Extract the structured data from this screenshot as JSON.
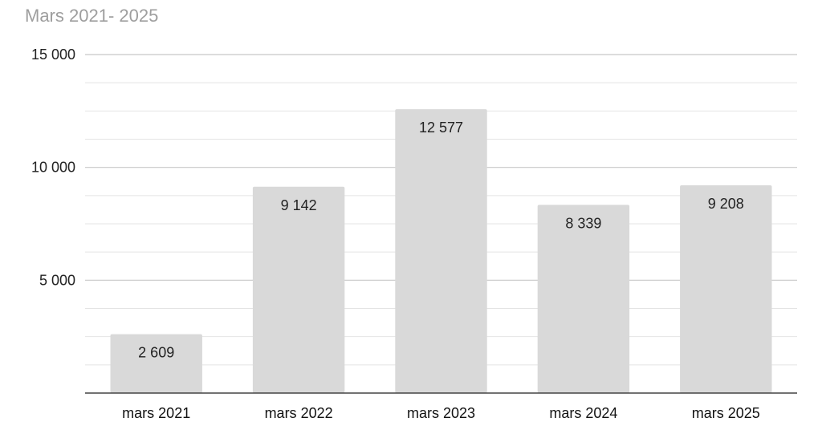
{
  "chart_data": {
    "type": "bar",
    "title": "Mars 2021- 2025",
    "categories": [
      "mars 2021",
      "mars 2022",
      "mars 2023",
      "mars 2024",
      "mars 2025"
    ],
    "values": [
      2609,
      9142,
      12577,
      8339,
      9208
    ],
    "data_labels": [
      "2 609",
      "9 142",
      "12 577",
      "8 339",
      "9 208"
    ],
    "y_ticks": [
      {
        "value": 5000,
        "label": "5 000"
      },
      {
        "value": 10000,
        "label": "10 000"
      },
      {
        "value": 15000,
        "label": "15 000"
      }
    ],
    "minor_gridline_step": 1250,
    "ylim": [
      0,
      15000
    ],
    "grid": true,
    "legend": "none",
    "colors": {
      "bar": "#d9d9d9",
      "major_grid": "#c8c8c8",
      "minor_grid": "#e4e4e4",
      "axis": "#444444",
      "title": "#9e9e9e"
    }
  }
}
